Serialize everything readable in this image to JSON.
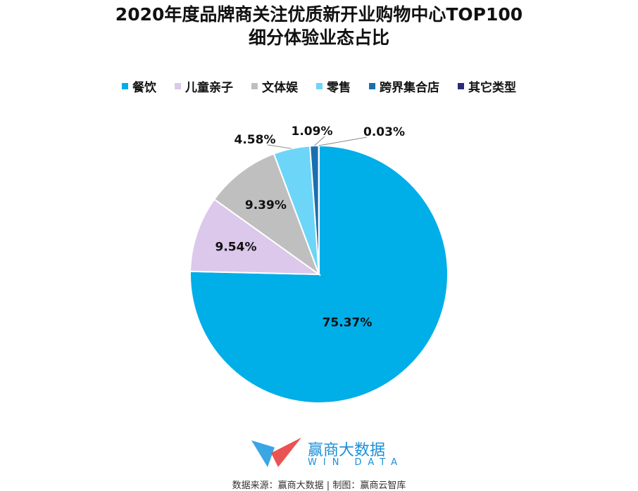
{
  "chart_data": {
    "type": "pie",
    "title": "2020年度品牌商关注优质新开业购物中心TOP100",
    "subtitle": "细分体验业态占比",
    "categories": [
      "餐饮",
      "儿童亲子",
      "文体娱",
      "零售",
      "跨界集合店",
      "其它类型"
    ],
    "values": [
      75.37,
      9.54,
      9.39,
      4.58,
      1.09,
      0.03
    ],
    "labels": [
      "75.37%",
      "9.54%",
      "9.39%",
      "4.58%",
      "1.09%",
      "0.03%"
    ],
    "colors": [
      "#00aee8",
      "#dcc8ea",
      "#bfbfbf",
      "#6dd5f7",
      "#1a6fae",
      "#2b2a7a"
    ],
    "start": "top",
    "direction": "clockwise",
    "legend_position": "top"
  },
  "logo": {
    "name": "赢商大数据",
    "sub": "WIN DATA"
  },
  "source": "数据来源：赢商大数据 | 制图：赢商云智库"
}
